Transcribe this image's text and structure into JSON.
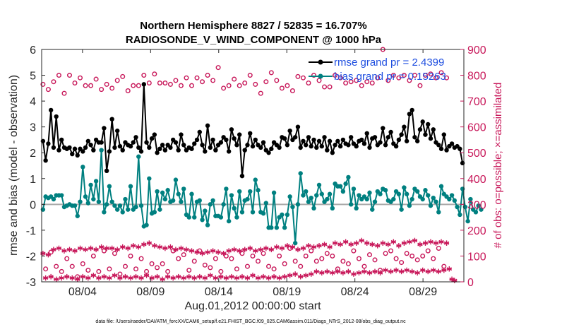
{
  "chart_data": {
    "type": "line",
    "title_line1": "Northern Hemisphere 8827 / 52835 = 16.707%",
    "title_line2": "RADIOSONDE_V_WIND_COMPONENT @ 1000 hPa",
    "xlabel": "Aug.01,2012 00:00:00 start",
    "ylabel": "rmse and bias (model - observation)",
    "ylabel_right": "# of obs: o=possible; ×=assimilated",
    "footer": "data file: /Users/raeder/DAI/ATM_forcXX/CAM6_setup/f.e21.FHIST_BGC.f09_025.CAM6assim.011/Diags_NTrS_2012-08/obs_diag_output.nc",
    "x_ticks": [
      "08/04",
      "08/09",
      "08/14",
      "08/19",
      "08/24",
      "08/29"
    ],
    "x_tick_days": [
      4,
      9,
      14,
      19,
      24,
      29
    ],
    "xlim": [
      1,
      32
    ],
    "ylim": [
      -3,
      6
    ],
    "y_ticks": [
      "-3",
      "-2",
      "-1",
      "0",
      "1",
      "2",
      "3",
      "4",
      "5",
      "6"
    ],
    "ylim_right": [
      0,
      900
    ],
    "y_ticks_right": [
      "0",
      "100",
      "200",
      "300",
      "400",
      "500",
      "600",
      "700",
      "800",
      "900"
    ],
    "legend": [
      {
        "label": "rmse grand pr = 2.4399",
        "color": "#000000"
      },
      {
        "label": "bias grand pr = 0.15263",
        "color": "#008080"
      }
    ],
    "series": [
      {
        "name": "rmse",
        "axis": "left",
        "color": "#000000",
        "values": [
          2.45,
          1.7,
          2.35,
          3.65,
          2.2,
          3.4,
          2.1,
          2.5,
          2.2,
          2.15,
          2.2,
          1.95,
          2.15,
          1.9,
          2.15,
          2.05,
          2.2,
          2.45,
          2.3,
          2.1,
          2.5,
          2.4,
          2.4,
          2.95,
          1.3,
          2.05,
          3.3,
          2.2,
          2.85,
          2.25,
          2.1,
          2.4,
          2.3,
          2.25,
          2.4,
          2.6,
          2.2,
          2.05,
          4.65,
          2.4,
          2.2,
          2.55,
          2.7,
          2.0,
          2.15,
          2.3,
          2.1,
          2.3,
          2.2,
          2.5,
          2.4,
          2.1,
          2.7,
          2.3,
          2.1,
          2.2,
          2.15,
          2.35,
          2.5,
          2.8,
          2.3,
          2.05,
          3.05,
          2.2,
          2.5,
          2.1,
          2.3,
          2.4,
          2.6,
          2.5,
          2.05,
          2.9,
          2.55,
          2.3,
          2.7,
          1.1,
          2.1,
          2.3,
          2.75,
          2.25,
          2.5,
          2.3,
          2.2,
          2.4,
          2.1,
          2.0,
          2.15,
          2.4,
          2.3,
          2.2,
          2.6,
          2.55,
          2.3,
          2.85,
          2.5,
          2.6,
          3.0,
          2.2,
          2.45,
          2.3,
          2.6,
          2.25,
          2.5,
          2.2,
          2.45,
          2.25,
          2.6,
          2.1,
          2.45,
          2.0,
          2.3,
          2.45,
          2.25,
          2.5,
          2.35,
          2.3,
          2.6,
          2.35,
          2.25,
          2.45,
          2.5,
          2.35,
          2.75,
          2.2,
          2.55,
          2.6,
          2.3,
          2.4,
          2.95,
          2.3,
          2.6,
          2.8,
          2.35,
          2.25,
          2.5,
          2.7,
          3.0,
          2.45,
          3.5,
          3.65,
          2.6,
          2.45,
          2.9,
          3.2,
          2.7,
          3.1,
          2.55,
          2.9,
          2.4,
          2.3,
          2.15,
          2.7,
          2.1,
          2.25,
          2.35,
          2.2,
          2.25,
          2.15,
          1.6
        ]
      },
      {
        "name": "bias",
        "axis": "left",
        "color": "#008080",
        "values": [
          -0.2,
          0.3,
          0.25,
          0.3,
          0.2,
          0.35,
          0.35,
          0.35,
          -0.1,
          -0.05,
          0.0,
          -0.05,
          -0.05,
          -0.45,
          0.1,
          1.45,
          0.3,
          0.05,
          0.75,
          0.2,
          0.9,
          0.1,
          2.1,
          -0.3,
          0.0,
          0.7,
          0.1,
          -0.05,
          -0.2,
          -0.05,
          -0.3,
          0.2,
          -0.2,
          0.7,
          -0.2,
          -0.1,
          1.85,
          -0.05,
          -0.85,
          -0.8,
          1.0,
          -0.35,
          -0.3,
          0.5,
          -0.2,
          0.45,
          0.2,
          0.55,
          0.1,
          0.15,
          0.95,
          0.4,
          0.1,
          0.6,
          -0.4,
          -0.5,
          0.4,
          -0.5,
          0.1,
          0.15,
          -0.6,
          -0.25,
          -0.8,
          0.0,
          0.15,
          -0.45,
          -0.45,
          -0.5,
          0.0,
          0.6,
          -0.65,
          0.35,
          -0.15,
          -0.5,
          0.5,
          -0.3,
          0.15,
          0.2,
          0.5,
          -0.3,
          0.95,
          0.55,
          -0.3,
          -0.35,
          0.05,
          -0.9,
          -0.9,
          0.45,
          -0.9,
          -0.5,
          -0.4,
          -0.9,
          -0.4,
          0.3,
          -0.1,
          -1.5,
          0.0,
          1.2,
          0.35,
          0.5,
          0.1,
          0.25,
          -0.15,
          0.35,
          0.75,
          0.4,
          0.1,
          0.2,
          0.4,
          -0.15,
          0.8,
          0.7,
          0.7,
          0.5,
          0.8,
          1.05,
          0.0,
          0.6,
          -0.15,
          0.35,
          0.2,
          0.3,
          0.2,
          0.45,
          -0.2,
          0.1,
          0.5,
          0.4,
          0.6,
          0.55,
          0.15,
          0.1,
          0.2,
          0.5,
          0.4,
          -0.2,
          0.65,
          0.4,
          -0.05,
          0.2,
          0.6,
          0.5,
          0.3,
          0.2,
          0.55,
          0.35,
          -0.05,
          0.25,
          0.1,
          -0.3,
          0.7,
          0.4,
          0.3,
          0.2,
          0.35,
          0.15,
          -0.1,
          -0.4,
          0.6,
          -0.1,
          -0.65,
          0.2,
          -0.2,
          -0.3,
          -0.05,
          -0.2
        ]
      },
      {
        "name": "obs possible",
        "axis": "right",
        "color": "#c8185a",
        "marker": "o",
        "values": [
          765,
          50,
          745,
          115,
          775,
          60,
          800,
          40,
          730,
          90,
          800,
          60,
          770,
          20,
          790,
          70,
          760,
          45,
          760,
          100,
          785,
          40,
          745,
          120,
          765,
          50,
          750,
          110,
          780,
          30,
          795,
          60,
          740,
          100,
          760,
          50,
          760,
          90,
          800,
          40,
          770,
          70,
          805,
          55,
          770,
          70,
          770,
          40,
          765,
          120,
          780,
          90,
          760,
          105,
          790,
          45,
          760,
          80,
          790,
          120,
          775,
          65,
          800,
          55,
          780,
          90,
          830,
          40,
          750,
          100,
          760,
          90,
          785,
          50,
          760,
          110,
          770,
          60,
          800,
          100,
          765,
          80,
          730,
          110,
          775,
          60,
          810,
          50,
          780,
          100,
          750,
          70,
          760,
          130,
          740,
          80,
          795,
          60,
          790,
          100,
          770,
          120,
          800,
          80,
          780,
          90,
          755,
          110,
          755,
          100,
          800,
          50,
          790,
          80,
          770,
          70,
          775,
          120,
          780,
          90,
          760,
          60,
          775,
          105,
          770,
          85,
          790,
          45,
          900,
          110,
          780,
          120,
          800,
          90,
          790,
          75,
          800,
          110,
          780,
          100,
          800,
          85,
          760,
          100,
          800,
          120,
          805,
          90,
          790,
          130,
          810,
          60,
          790
        ]
      },
      {
        "name": "obs assimilated",
        "axis": "right",
        "color": "#c8185a",
        "marker": "*",
        "values": [
          110,
          15,
          105,
          20,
          125,
          10,
          130,
          15,
          120,
          20,
          125,
          15,
          120,
          10,
          130,
          20,
          125,
          15,
          130,
          25,
          125,
          15,
          135,
          20,
          130,
          15,
          130,
          25,
          125,
          15,
          135,
          20,
          130,
          15,
          140,
          20,
          135,
          15,
          145,
          25,
          150,
          15,
          140,
          20,
          135,
          10,
          130,
          20,
          135,
          15,
          125,
          20,
          130,
          15,
          125,
          20,
          120,
          15,
          115,
          20,
          110,
          15,
          115,
          25,
          120,
          15,
          115,
          20,
          110,
          15,
          120,
          20,
          125,
          15,
          120,
          20,
          125,
          15,
          130,
          25,
          120,
          15,
          125,
          20,
          130,
          15,
          125,
          20,
          135,
          15,
          130,
          20,
          140,
          25,
          135,
          30,
          125,
          20,
          130,
          25,
          140,
          30,
          135,
          40,
          140,
          35,
          145,
          40,
          135,
          35,
          150,
          40,
          145,
          35,
          155,
          40,
          145,
          30,
          150,
          35,
          160,
          40,
          150,
          35,
          145,
          40,
          140,
          35,
          150,
          45,
          145,
          40,
          155,
          45,
          140,
          40,
          150,
          45,
          155,
          40,
          160,
          35,
          145,
          45,
          150,
          40,
          155,
          45,
          150,
          40,
          155,
          45,
          150,
          50,
          10,
          5
        ]
      }
    ]
  }
}
